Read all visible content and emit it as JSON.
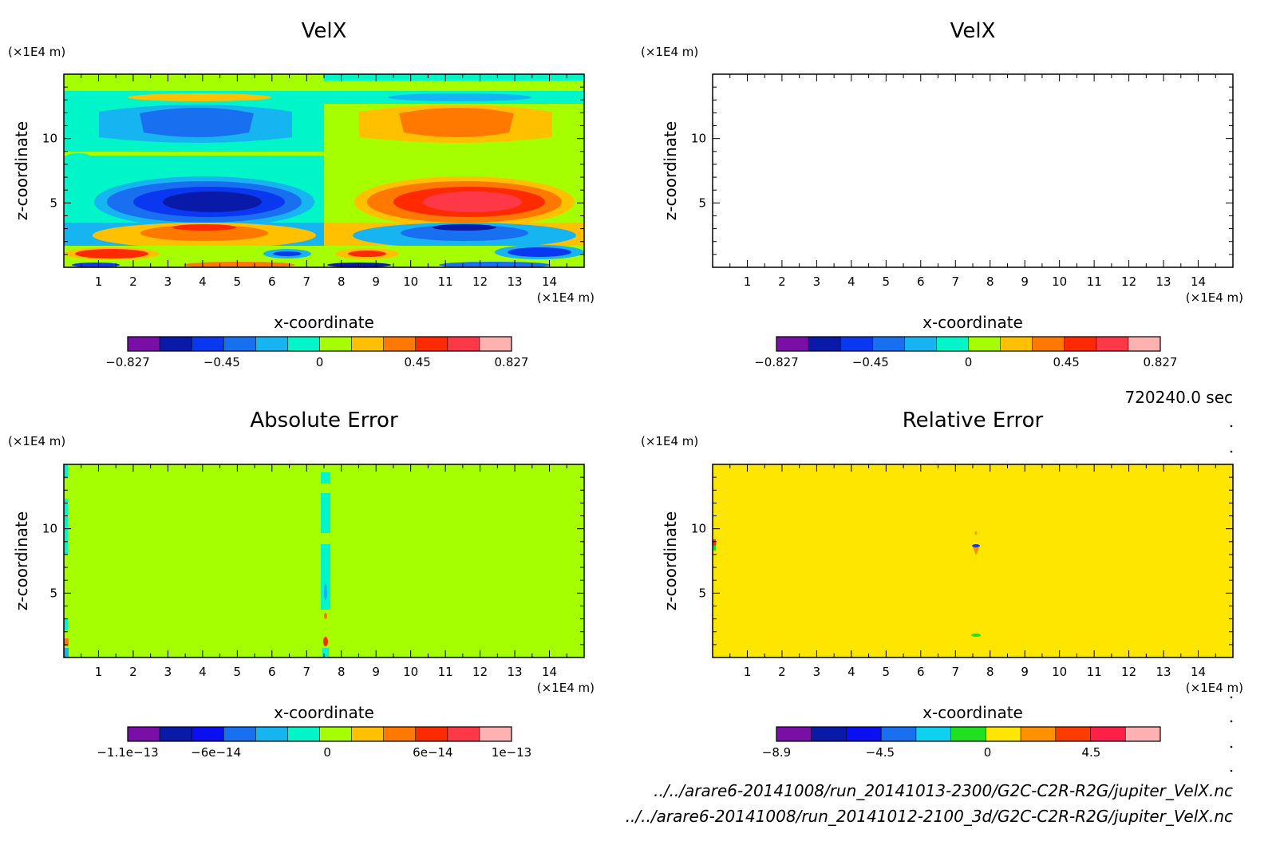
{
  "time_label": "720240.0 sec",
  "files": [
    "../../arare6-20141008/run_20141013-2300/G2C-C2R-R2G/jupiter_VelX.nc",
    "../../arare6-20141008/run_20141012-2100_3d/G2C-C2R-R2G/jupiter_VelX.nc"
  ],
  "chart_data": [
    {
      "type": "heatmap",
      "title": "VelX",
      "xlabel": "x-coordinate",
      "ylabel": "z-coordinate",
      "x_unit": "(×1E4 m)",
      "y_unit": "(×1E4 m)",
      "xlim": [
        0,
        15
      ],
      "ylim": [
        0,
        15
      ],
      "xticks": [
        "1",
        "2",
        "3",
        "4",
        "5",
        "6",
        "7",
        "8",
        "9",
        "10",
        "11",
        "12",
        "13",
        "14"
      ],
      "yticks": [
        "5",
        "10"
      ],
      "colorbar": {
        "tick_labels": [
          "−0.827",
          "−0.45",
          "0",
          "0.45",
          "0.827"
        ],
        "levels": [
          -0.827,
          -0.75,
          -0.6,
          -0.45,
          -0.3,
          -0.15,
          0,
          0.15,
          0.3,
          0.45,
          0.6,
          0.75,
          0.827
        ],
        "colors": [
          "#7a0fa8",
          "#0a1aa8",
          "#0a38f0",
          "#1870f0",
          "#16b4f0",
          "#00f5c8",
          "#a6ff00",
          "#ffc000",
          "#ff7800",
          "#ff2a00",
          "#ff3848",
          "#ffb0b0"
        ]
      }
    },
    {
      "type": "heatmap",
      "title": "VelX",
      "xlabel": "x-coordinate",
      "ylabel": "z-coordinate",
      "x_unit": "(×1E4 m)",
      "y_unit": "(×1E4 m)",
      "xlim": [
        0,
        15
      ],
      "ylim": [
        0,
        15
      ],
      "xticks": [
        "1",
        "2",
        "3",
        "4",
        "5",
        "6",
        "7",
        "8",
        "9",
        "10",
        "11",
        "12",
        "13",
        "14"
      ],
      "yticks": [
        "5",
        "10"
      ],
      "colorbar": {
        "tick_labels": [
          "−0.827",
          "−0.45",
          "0",
          "0.45",
          "0.827"
        ],
        "levels": [
          -0.827,
          -0.75,
          -0.6,
          -0.45,
          -0.3,
          -0.15,
          0,
          0.15,
          0.3,
          0.45,
          0.6,
          0.75,
          0.827
        ],
        "colors": [
          "#7a0fa8",
          "#0a1aa8",
          "#0a38f0",
          "#1870f0",
          "#16b4f0",
          "#00f5c8",
          "#a6ff00",
          "#ffc000",
          "#ff7800",
          "#ff2a00",
          "#ff3848",
          "#ffb0b0"
        ]
      }
    },
    {
      "type": "heatmap",
      "title": "Absolute Error",
      "xlabel": "x-coordinate",
      "ylabel": "z-coordinate",
      "x_unit": "(×1E4 m)",
      "y_unit": "(×1E4 m)",
      "xlim": [
        0,
        15
      ],
      "ylim": [
        0,
        15
      ],
      "xticks": [
        "1",
        "2",
        "3",
        "4",
        "5",
        "6",
        "7",
        "8",
        "9",
        "10",
        "11",
        "12",
        "13",
        "14"
      ],
      "yticks": [
        "5",
        "10"
      ],
      "colorbar": {
        "tick_labels": [
          "−1.1e−13",
          "−6e−14",
          "0",
          "6e−14",
          "1e−13"
        ],
        "colors": [
          "#7a0fa8",
          "#0a1aa8",
          "#0a10f0",
          "#1870f0",
          "#16b4f0",
          "#00f5c8",
          "#a6ff00",
          "#ffc000",
          "#ff7800",
          "#ff2a00",
          "#ff3848",
          "#ffb0b0"
        ]
      }
    },
    {
      "type": "heatmap",
      "title": "Relative Error",
      "xlabel": "x-coordinate",
      "ylabel": "z-coordinate",
      "x_unit": "(×1E4 m)",
      "y_unit": "(×1E4 m)",
      "xlim": [
        0,
        15
      ],
      "ylim": [
        0,
        15
      ],
      "xticks": [
        "1",
        "2",
        "3",
        "4",
        "5",
        "6",
        "7",
        "8",
        "9",
        "10",
        "11",
        "12",
        "13",
        "14"
      ],
      "yticks": [
        "5",
        "10"
      ],
      "colorbar": {
        "tick_labels": [
          "−8.9",
          "−4.5",
          "0",
          "4.5"
        ],
        "colors": [
          "#7a0fa8",
          "#0a1aa8",
          "#0a10f0",
          "#1870f0",
          "#10d0f0",
          "#20e020",
          "#ffe600",
          "#ff9000",
          "#ff3c00",
          "#ff2048",
          "#ffb0b0"
        ]
      }
    }
  ]
}
